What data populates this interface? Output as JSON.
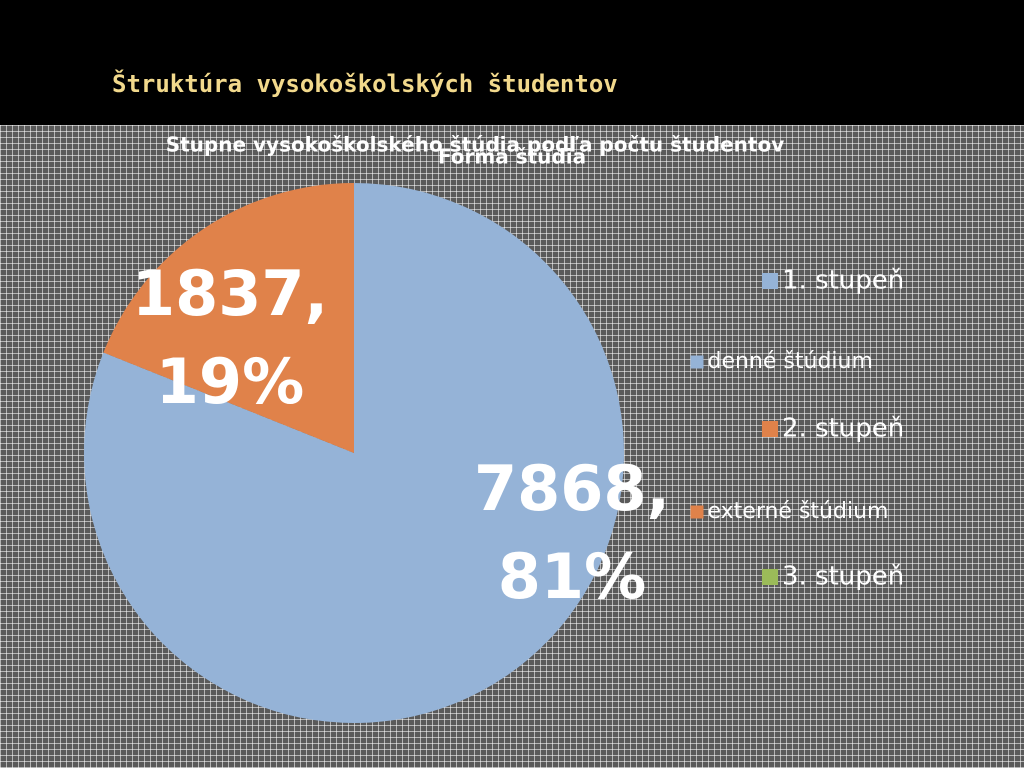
{
  "slide_title": "Štruktúra vysokoškolských študentov",
  "chart_data": [
    {
      "type": "legend-only",
      "title": "Stupne vysokoškolského štúdia podľa počtu študentov",
      "categories": [
        "1. stupeň",
        "2. stupeň",
        "3. stupeň"
      ],
      "colors": [
        "#95b3d7",
        "#e0824a",
        "#9bbb59"
      ]
    },
    {
      "type": "pie",
      "title": "Forma štúdia",
      "categories": [
        "denné štúdium",
        "externé štúdium"
      ],
      "values": [
        7868,
        1837
      ],
      "value_labels": [
        "7868, 81%",
        "1837, 19%"
      ],
      "colors": [
        "#95b3d7",
        "#e0824a"
      ]
    }
  ]
}
